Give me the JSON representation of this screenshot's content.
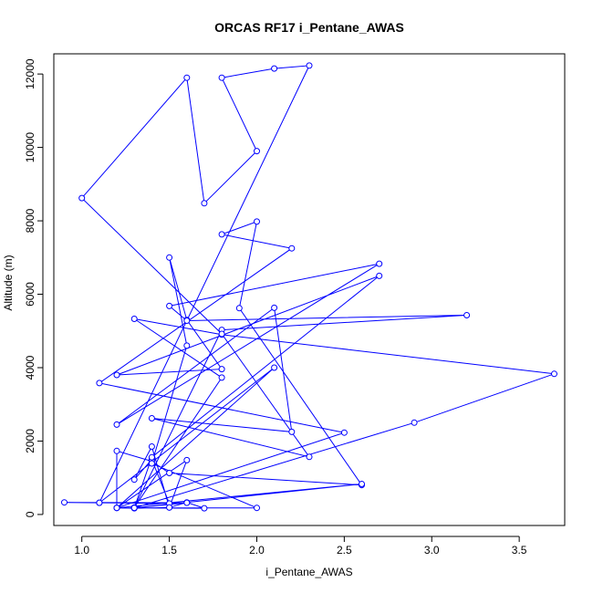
{
  "chart_data": {
    "type": "line",
    "title": "ORCAS RF17 i_Pentane_AWAS",
    "xlabel": "i_Pentane_AWAS",
    "ylabel": "Altitude (m)",
    "xlim": [
      0.84,
      3.76
    ],
    "ylim": [
      -300,
      12550
    ],
    "x_ticks": [
      "1.0",
      "1.5",
      "2.0",
      "2.5",
      "3.0",
      "3.5"
    ],
    "x_tick_values": [
      1.0,
      1.5,
      2.0,
      2.5,
      3.0,
      3.5
    ],
    "y_ticks": [
      "0",
      "2000",
      "4000",
      "6000",
      "8000",
      "10000",
      "12000"
    ],
    "y_tick_values": [
      0,
      2000,
      4000,
      6000,
      8000,
      10000,
      12000
    ],
    "grid": false,
    "series_color": "#0000ff",
    "series": [
      {
        "points": [
          [
            1.2,
            180
          ],
          [
            1.3,
            170
          ],
          [
            1.5,
            190
          ],
          [
            1.6,
            330
          ],
          [
            1.7,
            170
          ],
          [
            1.3,
            180
          ],
          [
            1.6,
            320
          ],
          [
            0.9,
            330
          ],
          [
            1.1,
            320
          ],
          [
            1.5,
            300
          ],
          [
            1.4,
            1500
          ],
          [
            1.3,
            950
          ],
          [
            1.4,
            1850
          ],
          [
            1.5,
            190
          ],
          [
            1.6,
            1480
          ],
          [
            1.2,
            180
          ],
          [
            1.2,
            1730
          ],
          [
            1.4,
            1450
          ],
          [
            1.5,
            1130
          ],
          [
            2.6,
            800
          ],
          [
            1.9,
            5620
          ],
          [
            2.0,
            7980
          ],
          [
            1.8,
            7630
          ],
          [
            2.2,
            7250
          ],
          [
            1.1,
            3580
          ],
          [
            2.5,
            2230
          ],
          [
            1.2,
            180
          ],
          [
            2.0,
            180
          ],
          [
            1.4,
            1390
          ],
          [
            1.6,
            4600
          ],
          [
            1.5,
            7000
          ],
          [
            1.6,
            5300
          ],
          [
            1.8,
            3960
          ],
          [
            1.2,
            3800
          ],
          [
            2.7,
            6500
          ],
          [
            1.4,
            1560
          ],
          [
            1.3,
            180
          ],
          [
            2.9,
            2500
          ],
          [
            3.7,
            3830
          ],
          [
            1.8,
            4900
          ],
          [
            1.3,
            5330
          ],
          [
            1.8,
            3730
          ],
          [
            1.3,
            190
          ],
          [
            1.8,
            5030
          ],
          [
            3.2,
            5430
          ],
          [
            1.6,
            5280
          ],
          [
            1.5,
            5680
          ],
          [
            2.7,
            6830
          ],
          [
            1.2,
            2450
          ],
          [
            2.1,
            5630
          ],
          [
            2.2,
            2250
          ],
          [
            1.4,
            2620
          ],
          [
            2.3,
            1570
          ],
          [
            1.8,
            4920
          ],
          [
            1.0,
            8620
          ],
          [
            1.6,
            11900
          ],
          [
            1.7,
            8480
          ],
          [
            2.0,
            9900
          ],
          [
            1.8,
            11900
          ],
          [
            2.1,
            12150
          ],
          [
            2.3,
            12230
          ],
          [
            1.1,
            320
          ],
          [
            2.1,
            4000
          ],
          [
            1.2,
            180
          ],
          [
            2.6,
            830
          ],
          [
            1.3,
            180
          ]
        ]
      }
    ]
  }
}
